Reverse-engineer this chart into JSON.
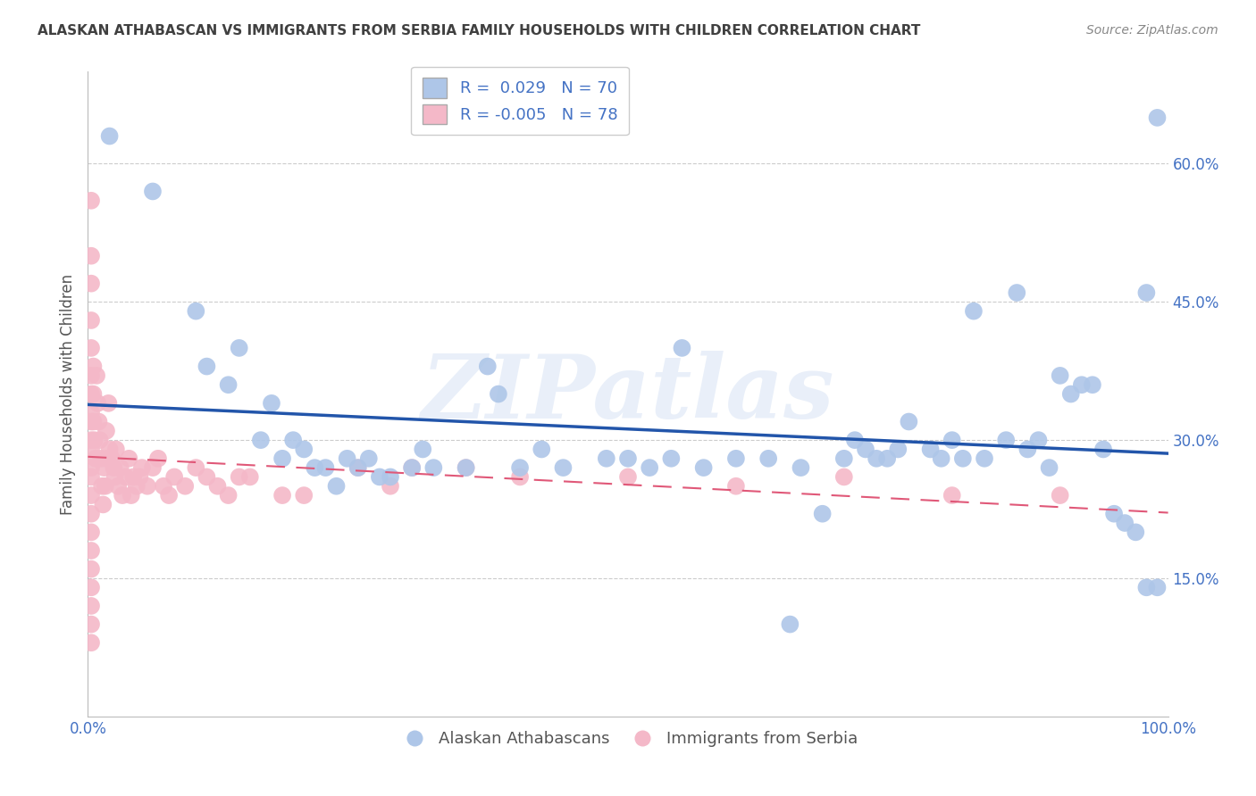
{
  "title": "ALASKAN ATHABASCAN VS IMMIGRANTS FROM SERBIA FAMILY HOUSEHOLDS WITH CHILDREN CORRELATION CHART",
  "source": "Source: ZipAtlas.com",
  "ylabel": "Family Households with Children",
  "xlabel": "",
  "xlim": [
    0.0,
    1.0
  ],
  "ylim": [
    0.0,
    0.7
  ],
  "yticks": [
    0.15,
    0.3,
    0.45,
    0.6
  ],
  "ytick_labels": [
    "15.0%",
    "30.0%",
    "45.0%",
    "60.0%"
  ],
  "xticks": [
    0.0,
    0.25,
    0.5,
    0.75,
    1.0
  ],
  "xtick_labels": [
    "0.0%",
    "",
    "",
    "",
    "100.0%"
  ],
  "blue_color": "#aec6e8",
  "pink_color": "#f4b8c8",
  "blue_line_color": "#2255aa",
  "pink_line_color": "#e05878",
  "watermark": "ZIPatlas",
  "blue_R": 0.029,
  "blue_N": 70,
  "pink_R": -0.005,
  "pink_N": 78,
  "blue_scatter": [
    [
      0.02,
      0.63
    ],
    [
      0.06,
      0.57
    ],
    [
      0.1,
      0.44
    ],
    [
      0.11,
      0.38
    ],
    [
      0.13,
      0.36
    ],
    [
      0.14,
      0.4
    ],
    [
      0.16,
      0.3
    ],
    [
      0.17,
      0.34
    ],
    [
      0.18,
      0.28
    ],
    [
      0.19,
      0.3
    ],
    [
      0.2,
      0.29
    ],
    [
      0.21,
      0.27
    ],
    [
      0.22,
      0.27
    ],
    [
      0.23,
      0.25
    ],
    [
      0.24,
      0.28
    ],
    [
      0.25,
      0.27
    ],
    [
      0.26,
      0.28
    ],
    [
      0.27,
      0.26
    ],
    [
      0.28,
      0.26
    ],
    [
      0.3,
      0.27
    ],
    [
      0.31,
      0.29
    ],
    [
      0.32,
      0.27
    ],
    [
      0.35,
      0.27
    ],
    [
      0.37,
      0.38
    ],
    [
      0.38,
      0.35
    ],
    [
      0.4,
      0.27
    ],
    [
      0.42,
      0.29
    ],
    [
      0.44,
      0.27
    ],
    [
      0.48,
      0.28
    ],
    [
      0.5,
      0.28
    ],
    [
      0.52,
      0.27
    ],
    [
      0.54,
      0.28
    ],
    [
      0.55,
      0.4
    ],
    [
      0.57,
      0.27
    ],
    [
      0.6,
      0.28
    ],
    [
      0.63,
      0.28
    ],
    [
      0.65,
      0.1
    ],
    [
      0.66,
      0.27
    ],
    [
      0.68,
      0.22
    ],
    [
      0.7,
      0.28
    ],
    [
      0.71,
      0.3
    ],
    [
      0.72,
      0.29
    ],
    [
      0.73,
      0.28
    ],
    [
      0.74,
      0.28
    ],
    [
      0.75,
      0.29
    ],
    [
      0.76,
      0.32
    ],
    [
      0.78,
      0.29
    ],
    [
      0.79,
      0.28
    ],
    [
      0.8,
      0.3
    ],
    [
      0.81,
      0.28
    ],
    [
      0.82,
      0.44
    ],
    [
      0.83,
      0.28
    ],
    [
      0.85,
      0.3
    ],
    [
      0.86,
      0.46
    ],
    [
      0.87,
      0.29
    ],
    [
      0.88,
      0.3
    ],
    [
      0.89,
      0.27
    ],
    [
      0.9,
      0.37
    ],
    [
      0.91,
      0.35
    ],
    [
      0.92,
      0.36
    ],
    [
      0.93,
      0.36
    ],
    [
      0.94,
      0.29
    ],
    [
      0.95,
      0.22
    ],
    [
      0.96,
      0.21
    ],
    [
      0.97,
      0.2
    ],
    [
      0.98,
      0.46
    ],
    [
      0.98,
      0.14
    ],
    [
      0.99,
      0.14
    ],
    [
      0.99,
      0.65
    ]
  ],
  "pink_scatter": [
    [
      0.003,
      0.56
    ],
    [
      0.003,
      0.5
    ],
    [
      0.003,
      0.47
    ],
    [
      0.003,
      0.43
    ],
    [
      0.003,
      0.4
    ],
    [
      0.003,
      0.37
    ],
    [
      0.003,
      0.35
    ],
    [
      0.003,
      0.33
    ],
    [
      0.003,
      0.32
    ],
    [
      0.003,
      0.3
    ],
    [
      0.003,
      0.29
    ],
    [
      0.003,
      0.27
    ],
    [
      0.003,
      0.26
    ],
    [
      0.003,
      0.24
    ],
    [
      0.003,
      0.22
    ],
    [
      0.003,
      0.2
    ],
    [
      0.003,
      0.18
    ],
    [
      0.003,
      0.16
    ],
    [
      0.003,
      0.14
    ],
    [
      0.003,
      0.12
    ],
    [
      0.003,
      0.1
    ],
    [
      0.003,
      0.08
    ],
    [
      0.005,
      0.38
    ],
    [
      0.005,
      0.35
    ],
    [
      0.005,
      0.32
    ],
    [
      0.006,
      0.3
    ],
    [
      0.007,
      0.28
    ],
    [
      0.008,
      0.37
    ],
    [
      0.009,
      0.34
    ],
    [
      0.01,
      0.32
    ],
    [
      0.011,
      0.3
    ],
    [
      0.012,
      0.28
    ],
    [
      0.013,
      0.25
    ],
    [
      0.014,
      0.23
    ],
    [
      0.015,
      0.27
    ],
    [
      0.016,
      0.25
    ],
    [
      0.017,
      0.31
    ],
    [
      0.018,
      0.28
    ],
    [
      0.019,
      0.34
    ],
    [
      0.02,
      0.29
    ],
    [
      0.022,
      0.28
    ],
    [
      0.024,
      0.27
    ],
    [
      0.025,
      0.26
    ],
    [
      0.026,
      0.29
    ],
    [
      0.028,
      0.25
    ],
    [
      0.03,
      0.27
    ],
    [
      0.032,
      0.24
    ],
    [
      0.035,
      0.26
    ],
    [
      0.038,
      0.28
    ],
    [
      0.04,
      0.24
    ],
    [
      0.042,
      0.26
    ],
    [
      0.045,
      0.25
    ],
    [
      0.048,
      0.26
    ],
    [
      0.05,
      0.27
    ],
    [
      0.055,
      0.25
    ],
    [
      0.06,
      0.27
    ],
    [
      0.065,
      0.28
    ],
    [
      0.07,
      0.25
    ],
    [
      0.075,
      0.24
    ],
    [
      0.08,
      0.26
    ],
    [
      0.09,
      0.25
    ],
    [
      0.1,
      0.27
    ],
    [
      0.11,
      0.26
    ],
    [
      0.12,
      0.25
    ],
    [
      0.13,
      0.24
    ],
    [
      0.14,
      0.26
    ],
    [
      0.15,
      0.26
    ],
    [
      0.18,
      0.24
    ],
    [
      0.2,
      0.24
    ],
    [
      0.25,
      0.27
    ],
    [
      0.28,
      0.25
    ],
    [
      0.3,
      0.27
    ],
    [
      0.35,
      0.27
    ],
    [
      0.4,
      0.26
    ],
    [
      0.5,
      0.26
    ],
    [
      0.6,
      0.25
    ],
    [
      0.7,
      0.26
    ],
    [
      0.8,
      0.24
    ],
    [
      0.9,
      0.24
    ]
  ],
  "background_color": "#ffffff",
  "grid_color": "#cccccc",
  "title_color": "#404040",
  "axis_label_color": "#555555",
  "tick_label_color": "#4472c4"
}
